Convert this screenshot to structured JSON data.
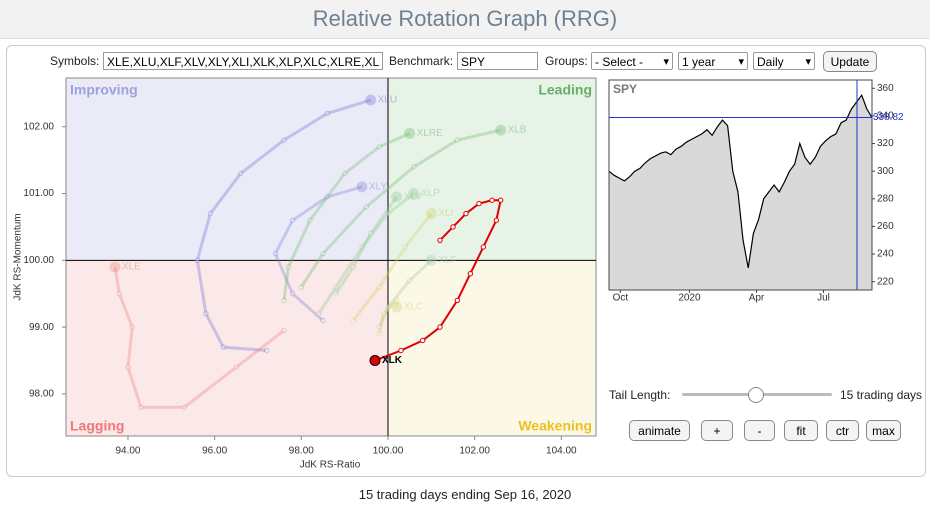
{
  "header": {
    "title": "Relative Rotation Graph (RRG)"
  },
  "controls": {
    "symbols_label": "Symbols:",
    "symbols_value": "XLE,XLU,XLF,XLV,XLY,XLI,XLK,XLP,XLC,XLRE,XL",
    "benchmark_label": "Benchmark:",
    "benchmark_value": "SPY",
    "groups_label": "Groups:",
    "groups_value": "- Select -",
    "period_value": "1 year",
    "frequency_value": "Daily",
    "update_button": "Update"
  },
  "chart_data": [
    {
      "type": "rrg",
      "x_label": "JdK RS-Ratio",
      "y_label": "JdK RS-Momentum",
      "xlim": [
        92.57,
        104.8
      ],
      "ylim": [
        97.37,
        102.73
      ],
      "center": [
        100,
        100
      ],
      "xticks": [
        {
          "value": 94,
          "label": "94.00"
        },
        {
          "value": 96,
          "label": "96.00"
        },
        {
          "value": 98,
          "label": "98.00"
        },
        {
          "value": 100,
          "label": "100.00"
        },
        {
          "value": 102,
          "label": "102.00"
        },
        {
          "value": 104,
          "label": "104.00"
        }
      ],
      "yticks": [
        {
          "value": 98,
          "label": "98.00"
        },
        {
          "value": 99,
          "label": "99.00"
        },
        {
          "value": 100,
          "label": "100.00"
        },
        {
          "value": 101,
          "label": "101.00"
        },
        {
          "value": 102,
          "label": "102.00"
        }
      ],
      "quadrants": [
        {
          "name": "Improving",
          "color": "#9aa2e0",
          "background": "#ebebf8"
        },
        {
          "name": "Leading",
          "color": "#66b066",
          "background": "#e8f3e8"
        },
        {
          "name": "Lagging",
          "color": "#f07878",
          "background": "#fbe8e8"
        },
        {
          "name": "Weakening",
          "color": "#f0c020",
          "background": "#fbf8e8"
        }
      ],
      "series": [
        {
          "name": "XLU",
          "color": "#7070d8",
          "highlighted": false,
          "x": [
            97.2,
            96.2,
            95.8,
            95.6,
            95.9,
            96.6,
            97.6,
            98.6,
            99.6
          ],
          "y": [
            98.65,
            98.7,
            99.2,
            100.0,
            100.7,
            101.3,
            101.8,
            102.2,
            102.4
          ]
        },
        {
          "name": "XLY",
          "color": "#8080d8",
          "highlighted": false,
          "x": [
            98.5,
            97.8,
            97.4,
            97.8,
            98.6,
            99.4
          ],
          "y": [
            99.1,
            99.5,
            100.1,
            100.6,
            100.95,
            101.1
          ]
        },
        {
          "name": "XLE",
          "color": "#f08080",
          "highlighted": false,
          "x": [
            97.6,
            96.5,
            95.3,
            94.3,
            94.0,
            94.1,
            93.8,
            93.7
          ],
          "y": [
            98.95,
            98.4,
            97.8,
            97.8,
            98.4,
            99.0,
            99.5,
            99.9
          ]
        },
        {
          "name": "XLRE",
          "color": "#70b870",
          "highlighted": false,
          "x": [
            97.6,
            97.7,
            98.2,
            99.0,
            99.8,
            100.5
          ],
          "y": [
            99.4,
            99.9,
            100.6,
            101.3,
            101.7,
            101.9
          ]
        },
        {
          "name": "XLB",
          "color": "#70b870",
          "highlighted": false,
          "x": [
            98.0,
            98.5,
            99.5,
            100.6,
            101.6,
            102.6
          ],
          "y": [
            99.6,
            100.1,
            100.8,
            101.4,
            101.8,
            101.95
          ]
        },
        {
          "name": "XLP",
          "color": "#90c890",
          "highlighted": false,
          "x": [
            98.4,
            98.8,
            99.4,
            100.0,
            100.6
          ],
          "y": [
            99.2,
            99.6,
            100.2,
            100.7,
            101.0
          ]
        },
        {
          "name": "XLV",
          "color": "#90c890",
          "highlighted": false,
          "x": [
            98.8,
            99.2,
            99.6,
            100.2
          ],
          "y": [
            99.5,
            99.9,
            100.4,
            100.95
          ]
        },
        {
          "name": "XLI",
          "color": "#d0d060",
          "highlighted": false,
          "x": [
            99.2,
            99.8,
            100.4,
            101.0
          ],
          "y": [
            99.1,
            99.6,
            100.2,
            100.7
          ]
        },
        {
          "name": "XLF",
          "color": "#a0c8a0",
          "highlighted": false,
          "x": [
            99.8,
            100.0,
            100.5,
            101.0
          ],
          "y": [
            99.0,
            99.3,
            99.7,
            100.0
          ]
        },
        {
          "name": "XLC",
          "color": "#d8d070",
          "highlighted": false,
          "x": [
            99.8,
            99.9,
            100.2,
            100.2
          ],
          "y": [
            98.9,
            99.2,
            99.4,
            99.3
          ]
        },
        {
          "name": "XLK",
          "color": "#e00000",
          "highlighted": true,
          "x": [
            101.2,
            101.5,
            101.8,
            102.1,
            102.4,
            102.6,
            102.5,
            102.2,
            101.9,
            101.6,
            101.2,
            100.8,
            100.3,
            99.7
          ],
          "y": [
            100.3,
            100.5,
            100.7,
            100.85,
            100.9,
            100.9,
            100.6,
            100.2,
            99.8,
            99.4,
            99.0,
            98.8,
            98.65,
            98.5
          ]
        }
      ]
    },
    {
      "type": "line",
      "title": "SPY",
      "color": "#000000",
      "area_color": "#d9d9d9",
      "price_line_color": "#2233cc",
      "values": [
        300,
        297,
        295,
        293,
        296,
        300,
        302,
        306,
        309,
        311,
        313,
        314,
        312,
        316,
        318,
        321,
        323,
        325,
        327,
        330,
        326,
        332,
        337,
        333,
        300,
        285,
        250,
        230,
        255,
        265,
        280,
        285,
        290,
        285,
        292,
        300,
        305,
        320,
        310,
        305,
        310,
        318,
        322,
        325,
        327,
        335,
        337,
        345,
        350,
        355,
        345,
        338.82
      ],
      "xlim": [
        0,
        51
      ],
      "xticks": [
        {
          "value": 2.2,
          "label": "Oct"
        },
        {
          "value": 15.6,
          "label": "2020"
        },
        {
          "value": 28.6,
          "label": "Apr"
        },
        {
          "value": 41.6,
          "label": "Jul"
        }
      ],
      "ylim": [
        214,
        366
      ],
      "yticks": [
        220,
        240,
        260,
        280,
        300,
        320,
        340,
        360
      ]
    }
  ],
  "tail": {
    "label": "Tail Length:",
    "value_text": "15 trading days"
  },
  "buttons": [
    "animate",
    "+",
    "-",
    "fit",
    "ctr",
    "max"
  ],
  "footer": "15 trading days ending Sep 16, 2020"
}
